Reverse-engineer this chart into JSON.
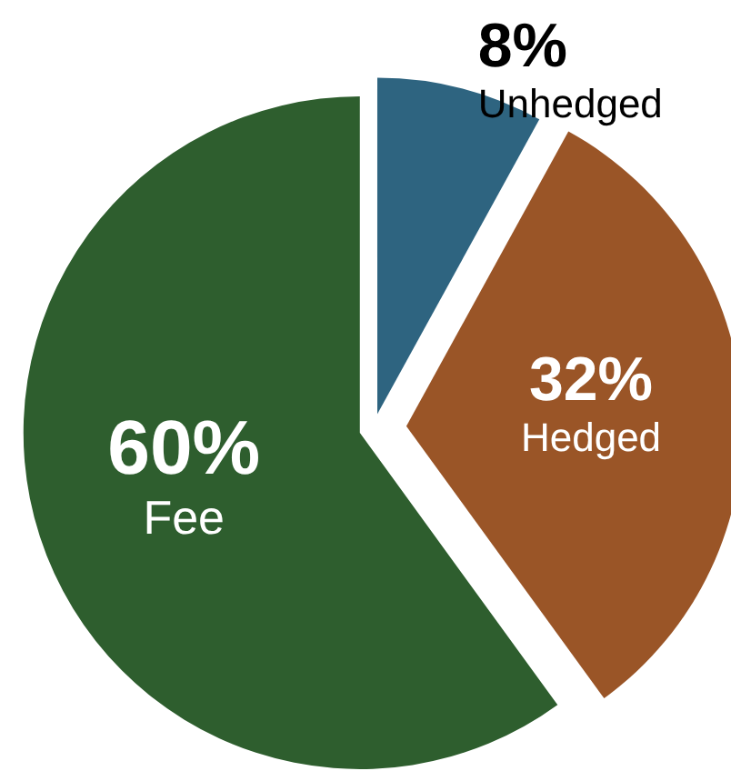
{
  "chart_data": {
    "type": "pie",
    "categories": [
      "Unhedged",
      "Hedged",
      "Fee"
    ],
    "values": [
      8,
      32,
      60
    ],
    "colors": [
      "#2e6480",
      "#9a5527",
      "#2e5e2e"
    ],
    "value_labels": [
      "8%",
      "32%",
      "60%"
    ]
  }
}
